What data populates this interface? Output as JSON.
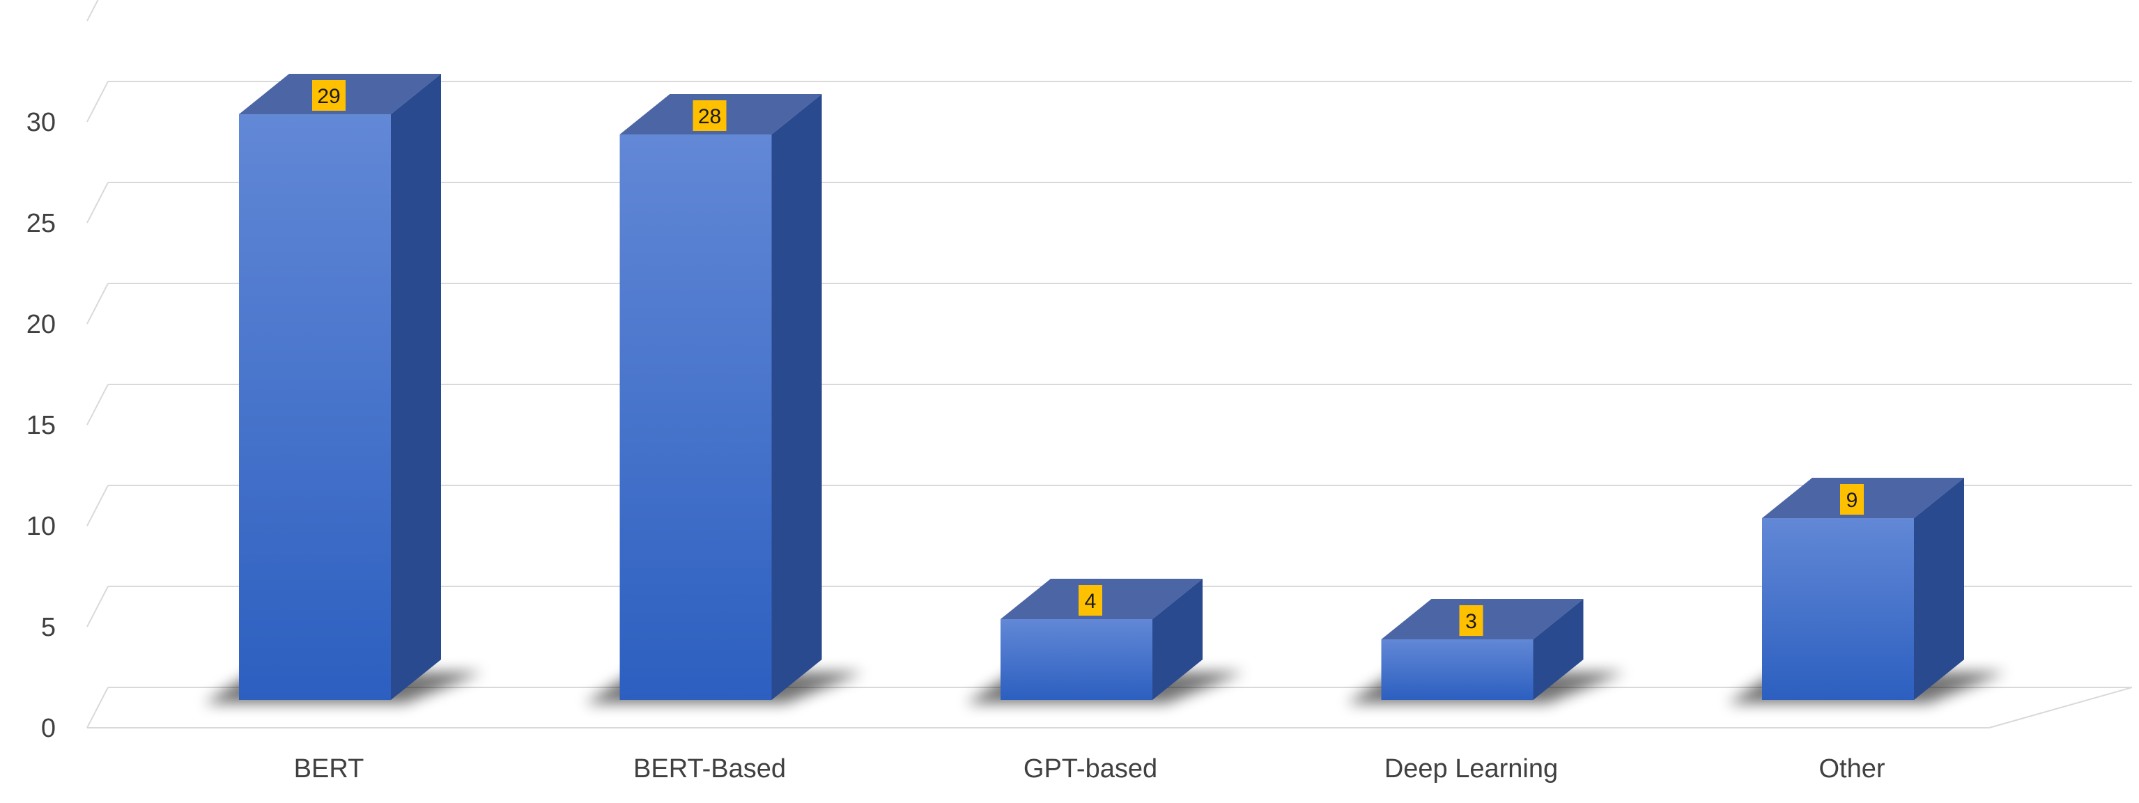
{
  "chart_data": {
    "type": "bar",
    "style": "3d-column",
    "categories": [
      "BERT",
      "BERT-Based",
      "GPT-based",
      "Deep Learning",
      "Other"
    ],
    "values": [
      29,
      28,
      4,
      3,
      9
    ],
    "title": "",
    "xlabel": "",
    "ylabel": "",
    "ylim": [
      0,
      30
    ],
    "yticks": [
      "0",
      "5",
      "10",
      "15",
      "20",
      "25",
      "30"
    ],
    "data_labels": [
      "29",
      "28",
      "4",
      "3",
      "9"
    ],
    "grid": true,
    "legend": "none"
  },
  "colors": {
    "bar_front_top": "#6288d6",
    "bar_front_bottom": "#2c5fc0",
    "bar_side": "#2a4a8f",
    "bar_top": "#4b65a5",
    "data_label_bg": "#ffc000",
    "grid": "#d9d9d9",
    "text": "#404040"
  }
}
